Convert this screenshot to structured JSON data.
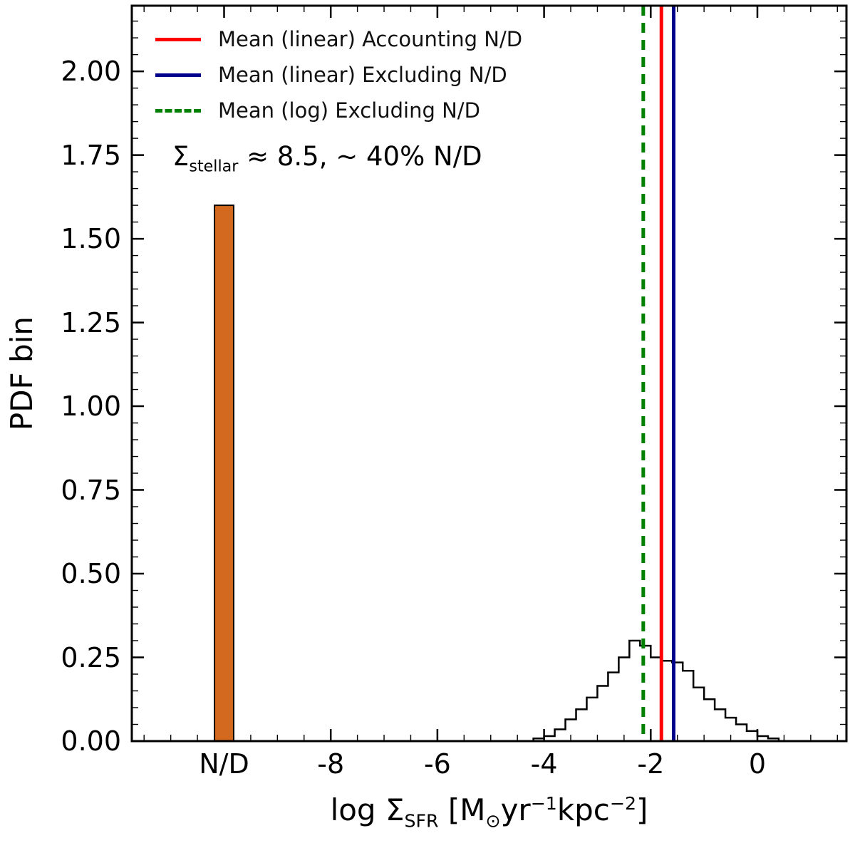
{
  "figure": {
    "background": "#ffffff"
  },
  "axes": {
    "ylabel": "PDF bin",
    "xlabel_parts": {
      "p1": "log Σ",
      "s1": "SFR",
      "p2": " [M",
      "s2": "⊙",
      "p3": "yr",
      "sp1": "−1",
      "p4": "kpc",
      "sp2": "−2",
      "p5": "]"
    },
    "x_ticks": [
      {
        "v": -10,
        "label": "N/D"
      },
      {
        "v": -8,
        "label": "-8"
      },
      {
        "v": -6,
        "label": "-6"
      },
      {
        "v": -4,
        "label": "-4"
      },
      {
        "v": -2,
        "label": "-2"
      },
      {
        "v": 0,
        "label": "0"
      }
    ],
    "y_ticks": [
      {
        "v": 0.0,
        "label": "0.00"
      },
      {
        "v": 0.25,
        "label": "0.25"
      },
      {
        "v": 0.5,
        "label": "0.50"
      },
      {
        "v": 0.75,
        "label": "0.75"
      },
      {
        "v": 1.0,
        "label": "1.00"
      },
      {
        "v": 1.25,
        "label": "1.25"
      },
      {
        "v": 1.5,
        "label": "1.50"
      },
      {
        "v": 1.75,
        "label": "1.75"
      },
      {
        "v": 2.0,
        "label": "2.00"
      }
    ]
  },
  "legend": {
    "items": [
      {
        "label": "Mean (linear) Accounting N/D",
        "color": "#ff0000",
        "dash": "solid"
      },
      {
        "label": "Mean (linear) Excluding N/D",
        "color": "#00008b",
        "dash": "solid"
      },
      {
        "label": "Mean (log) Excluding N/D",
        "color": "#008000",
        "dash": "dashed"
      }
    ]
  },
  "annotation": {
    "sigma": "Σ",
    "sub": "stellar",
    "rest": " ≈ 8.5,  ∼ 40% N/D"
  },
  "chart_data": {
    "type": "histogram",
    "title": "",
    "xlabel": "log Σ_SFR [M⊙ yr^-1 kpc^-2]",
    "ylabel": "PDF bin",
    "xlim": [
      -11.73,
      1.67
    ],
    "ylim": [
      0,
      2.196
    ],
    "grid": false,
    "legend_position": "upper left",
    "nd_bar": {
      "x_center": -10,
      "tick_label": "N/D",
      "width": 0.36,
      "height": 1.6,
      "fill": "#d2691e",
      "edge": "#000000"
    },
    "histogram": {
      "color": "#000000",
      "bin_edges": [
        -4.2,
        -4.0,
        -3.8,
        -3.6,
        -3.4,
        -3.2,
        -3.0,
        -2.8,
        -2.6,
        -2.4,
        -2.2,
        -2.0,
        -1.8,
        -1.6,
        -1.4,
        -1.2,
        -1.0,
        -0.8,
        -0.6,
        -0.4,
        -0.2,
        0.0,
        0.2,
        0.4
      ],
      "heights": [
        0.008,
        0.015,
        0.035,
        0.065,
        0.095,
        0.13,
        0.165,
        0.205,
        0.25,
        0.3,
        0.285,
        0.25,
        0.24,
        0.235,
        0.21,
        0.16,
        0.125,
        0.095,
        0.07,
        0.05,
        0.03,
        0.015,
        0.008
      ]
    },
    "mean_lines": [
      {
        "x": -1.8,
        "color": "#ff0000",
        "style": "solid",
        "label": "Mean (linear) Accounting N/D"
      },
      {
        "x": -1.57,
        "color": "#00008b",
        "style": "solid",
        "label": "Mean (linear) Excluding N/D"
      },
      {
        "x": -2.14,
        "color": "#008000",
        "style": "dashed",
        "label": "Mean (log) Excluding N/D"
      }
    ],
    "annotation_text": "Σ_stellar ≈ 8.5,  ∼ 40% N/D"
  }
}
